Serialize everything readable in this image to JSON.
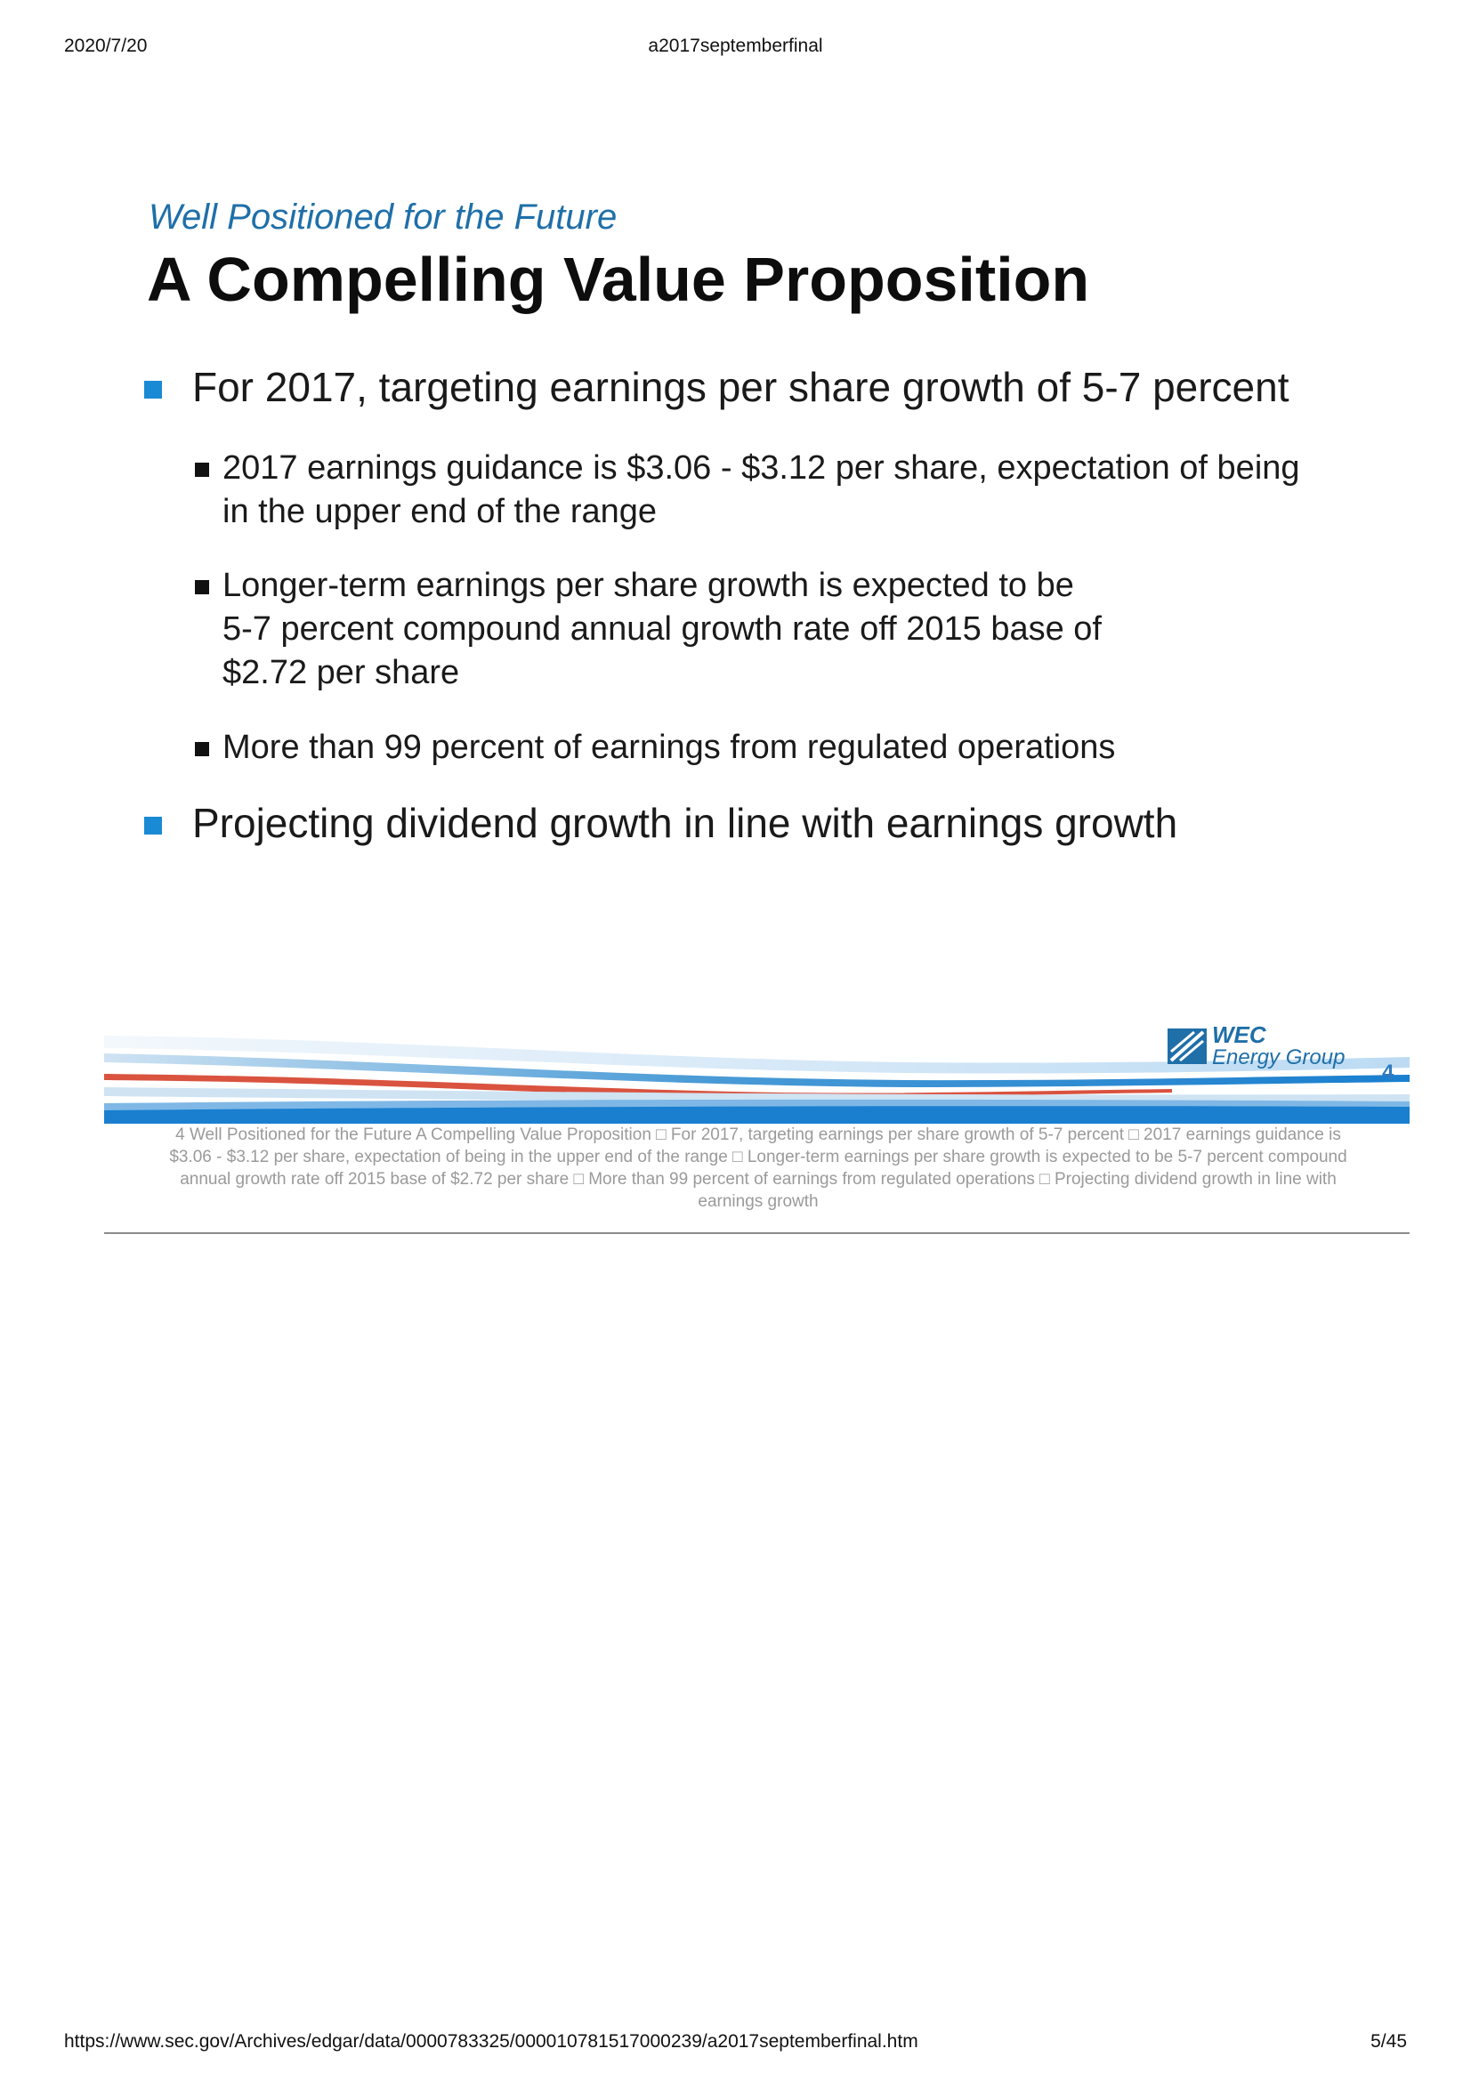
{
  "browser_header": {
    "date": "2020/7/20",
    "doc_title": "a2017septemberfinal"
  },
  "browser_footer": {
    "url": "https://www.sec.gov/Archives/edgar/data/0000783325/000010781517000239/a2017septemberfinal.htm",
    "page": "5/45"
  },
  "slide": {
    "subtitle": "Well Positioned for the Future",
    "title": "A Compelling Value Proposition",
    "bullet1": "For 2017, targeting earnings per share growth of 5-7 percent",
    "sub1": {
      "line1": "2017 earnings guidance is $3.06 - $3.12 per share, expectation of being",
      "line2": "in the upper end of the range"
    },
    "sub2": {
      "line1": "Longer-term earnings per share growth is expected to be",
      "line2": "5-7 percent compound annual growth rate off 2015 base of",
      "line3": "$2.72 per share"
    },
    "sub3": "More than 99 percent of earnings from regulated operations",
    "bullet2": "Projecting dividend growth in line with earnings growth",
    "logo": {
      "line1": "WEC",
      "line2": "Energy Group"
    },
    "page_number": "4",
    "colors": {
      "accent_blue": "#1a8ad4",
      "title_blue": "#1f6fa8"
    }
  },
  "caption": {
    "line1": "4  Well Positioned for the Future  A Compelling Value Proposition  □  For 2017, targeting earnings per share growth of 5-7 percent  □  2017 earnings guidance is",
    "line2": "$3.06 - $3.12 per share, expectation of being  in the upper end of the range  □  Longer-term earnings per share growth is expected to be  5-7 percent compound",
    "line3": "annual growth rate off 2015 base of  $2.72 per share  □  More than 99 percent of earnings from regulated operations  □  Projecting dividend growth in line with",
    "line4": "earnings growth"
  }
}
